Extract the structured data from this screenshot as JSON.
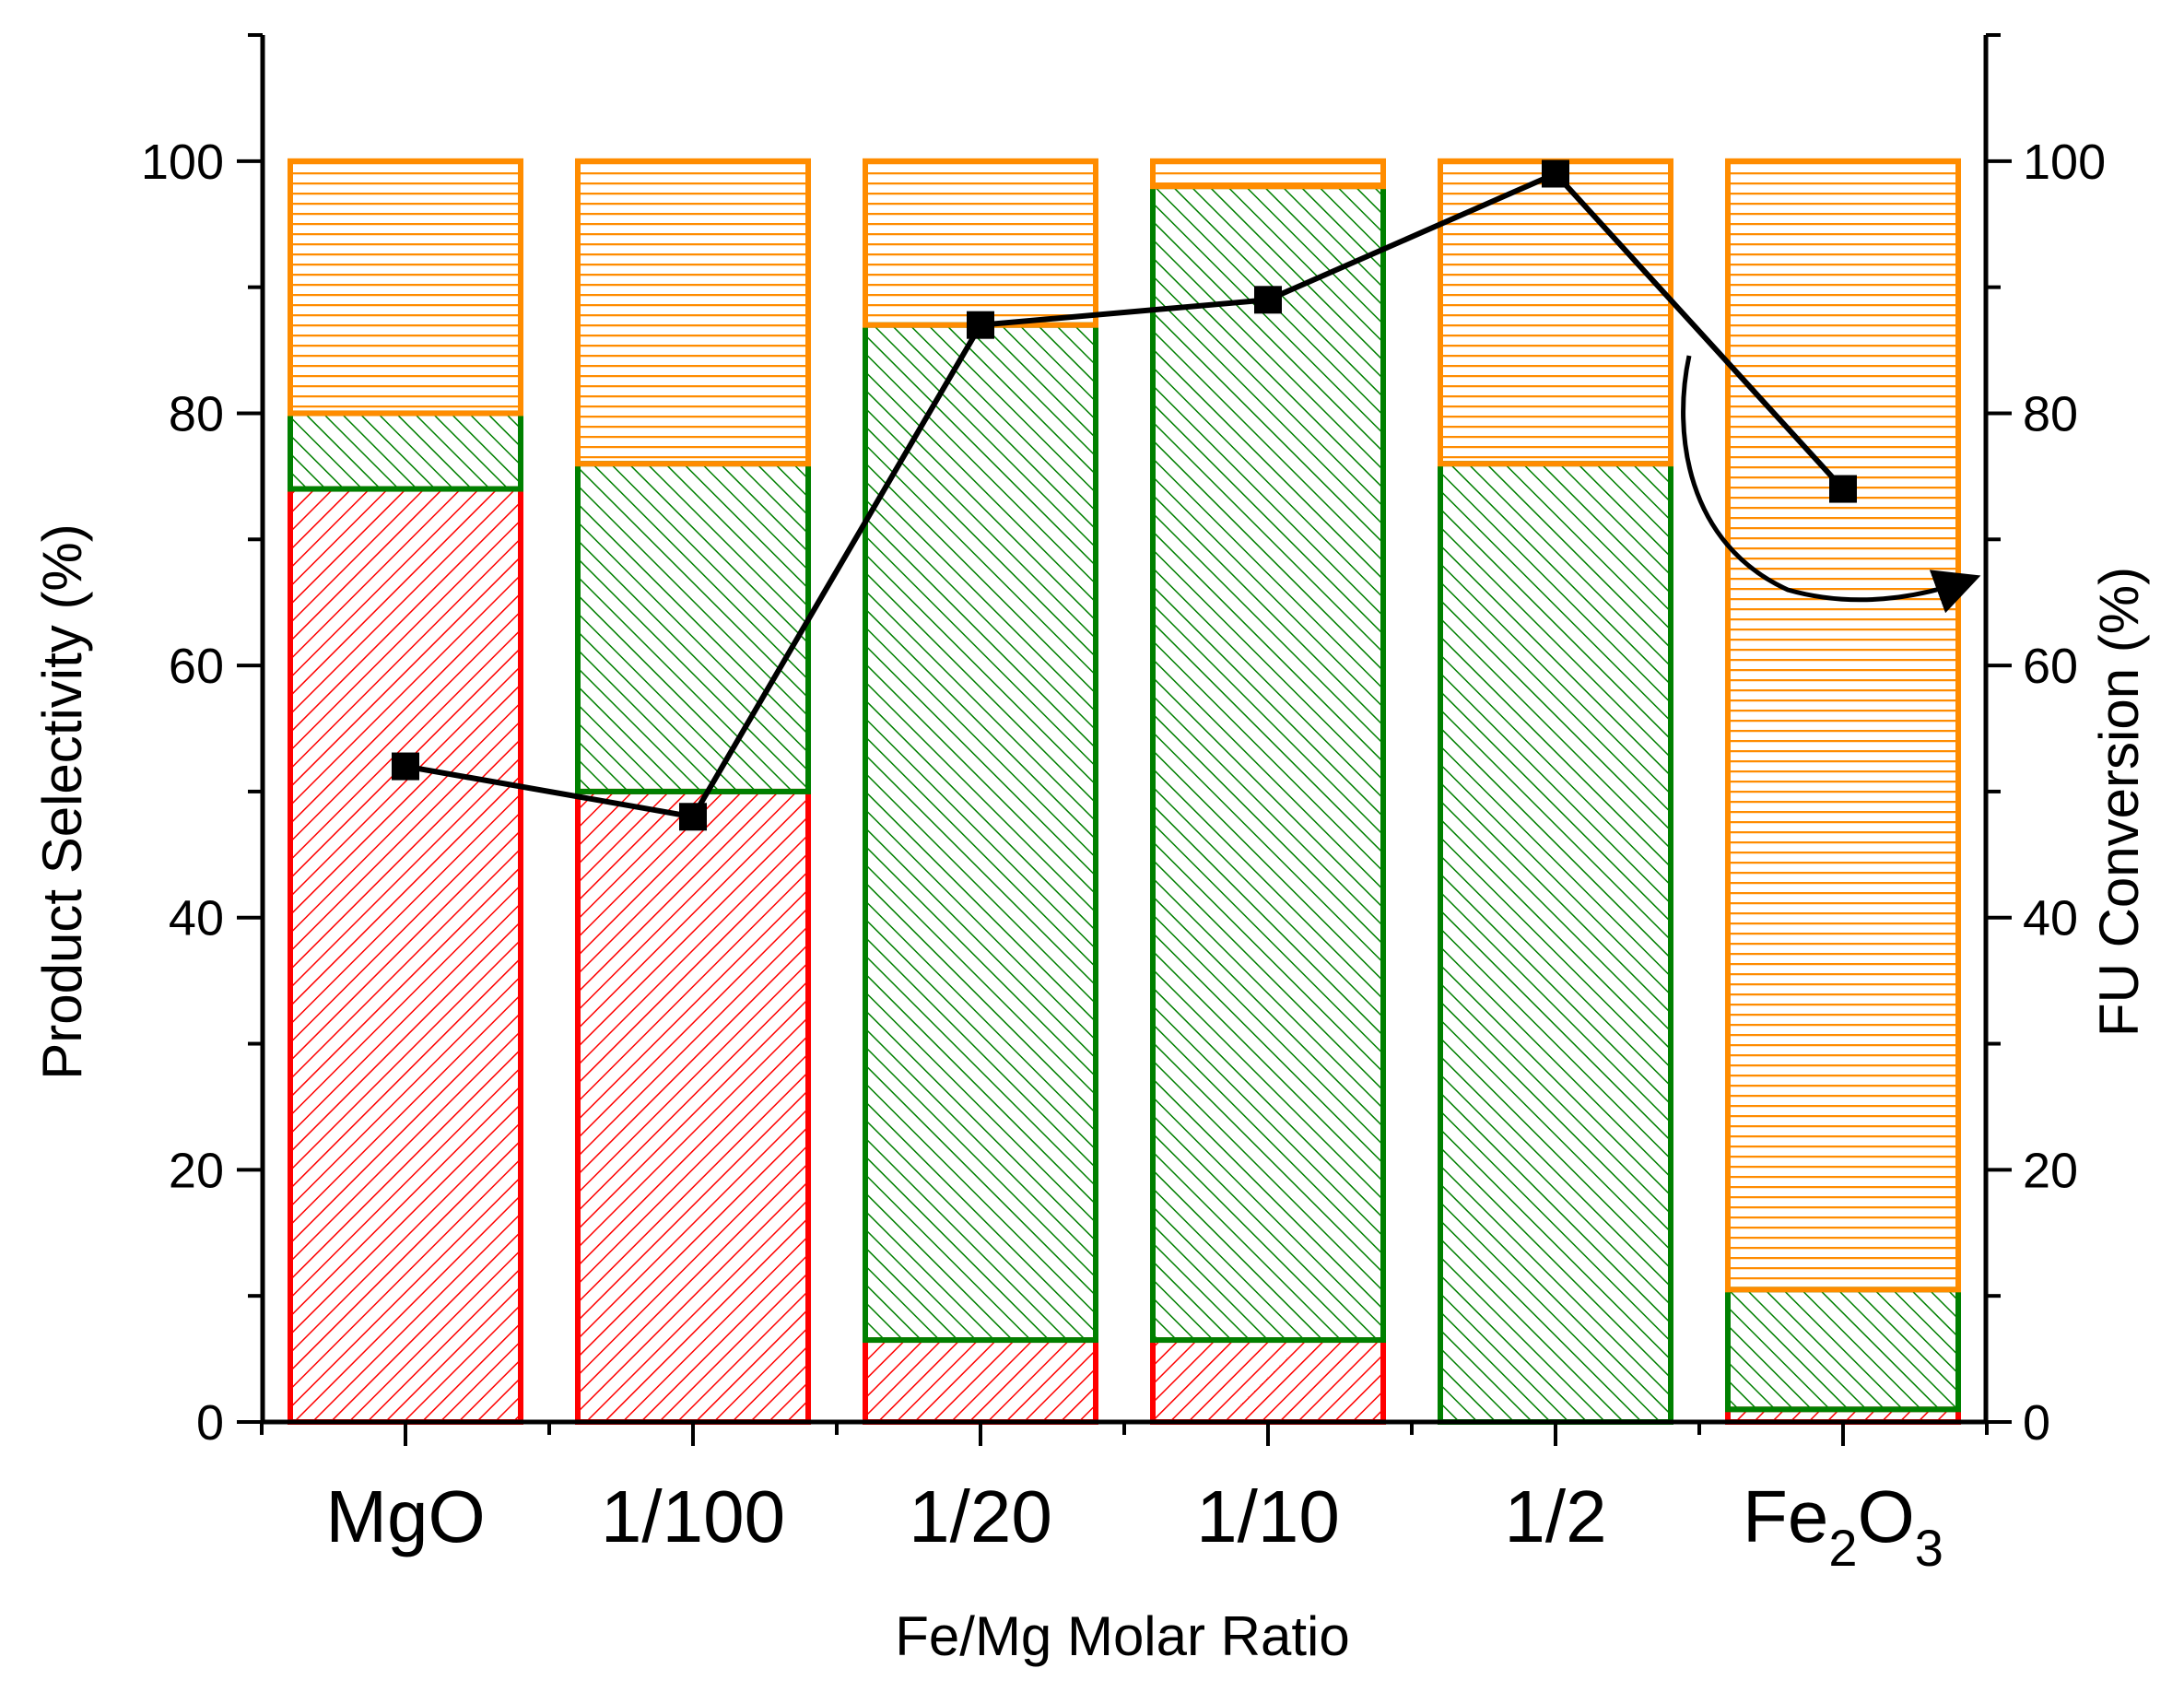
{
  "chart_data": {
    "type": "bar",
    "stacked": true,
    "categories": [
      "MgO",
      "1/100",
      "1/20",
      "1/10",
      "1/2",
      "Fe2O3"
    ],
    "series": [
      {
        "name": "red-hatched-product",
        "color": "#ff0000",
        "hatch": "diagonal-right",
        "values": [
          74,
          50,
          6.5,
          6.5,
          0,
          1
        ]
      },
      {
        "name": "green-hatched-product",
        "color": "#008000",
        "hatch": "diagonal-left",
        "values": [
          6,
          26,
          80.5,
          91.5,
          76,
          9.5
        ]
      },
      {
        "name": "orange-hatched-product",
        "color": "#ff8c00",
        "hatch": "horizontal",
        "values": [
          20,
          24,
          13,
          2,
          24,
          89.5
        ]
      }
    ],
    "line_series": {
      "name": "FU Conversion",
      "axis": "right",
      "color": "#000000",
      "marker": "square",
      "values": [
        52,
        48,
        87,
        89,
        99,
        74
      ]
    },
    "xlabel": "Fe/Mg Molar Ratio",
    "ylabel": "Product Selectivity (%)",
    "y2label": "FU Conversion (%)",
    "ylim": [
      0,
      110
    ],
    "y2lim": [
      0,
      110
    ],
    "yticks": [
      0,
      20,
      40,
      60,
      80,
      100
    ],
    "y2ticks": [
      0,
      20,
      40,
      60,
      80,
      100
    ],
    "ytick_labels": [
      "0",
      "20",
      "40",
      "60",
      "80",
      "100"
    ],
    "y2tick_labels": [
      "0",
      "20",
      "40",
      "60",
      "80",
      "100"
    ],
    "category_labels": [
      {
        "text": "MgO"
      },
      {
        "text": "1/100"
      },
      {
        "text": "1/20"
      },
      {
        "text": "1/10"
      },
      {
        "text": "1/2"
      },
      {
        "main": "Fe",
        "sub1": "2",
        "mid": "O",
        "sub2": "3"
      }
    ],
    "annotations": [
      "curved arrow pointing from line series to right axis"
    ]
  }
}
